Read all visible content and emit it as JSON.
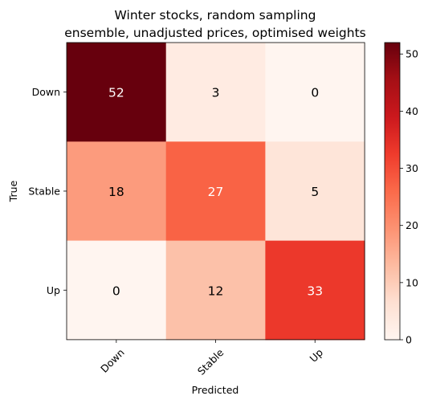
{
  "chart_data": {
    "type": "heatmap",
    "title": [
      "Winter stocks, random sampling",
      "ensemble, unadjusted prices, optimised weights"
    ],
    "xlabel": "Predicted",
    "ylabel": "True",
    "x_categories": [
      "Down",
      "Stable",
      "Up"
    ],
    "y_categories": [
      "Down",
      "Stable",
      "Up"
    ],
    "values": [
      [
        52,
        3,
        0
      ],
      [
        18,
        27,
        5
      ],
      [
        0,
        12,
        33
      ]
    ],
    "colormap": "Reds",
    "colorbar": {
      "min": 0,
      "max": 52,
      "ticks": [
        0,
        10,
        20,
        30,
        40,
        50
      ]
    }
  }
}
